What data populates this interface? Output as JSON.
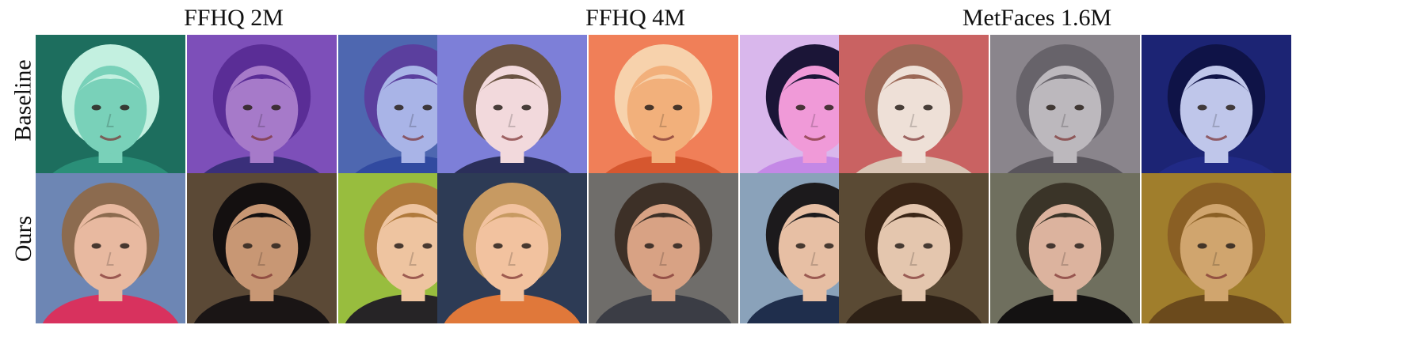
{
  "columns": [
    "FFHQ 2M",
    "FFHQ 4M",
    "MetFaces 1.6M"
  ],
  "rows": [
    "Baseline",
    "Ours"
  ],
  "tiles": {
    "baseline": [
      [
        {
          "bg": "#1d6e5e",
          "skin": "#79d1b9",
          "hair": "#c3f0e0",
          "shirt": "#2a8f78"
        },
        {
          "bg": "#7d4fb9",
          "skin": "#a67ac9",
          "hair": "#5a2d96",
          "shirt": "#3a2f7a"
        },
        {
          "bg": "#4e67b0",
          "skin": "#a9b4e7",
          "hair": "#5b3f9e",
          "shirt": "#314aa0"
        }
      ],
      [
        {
          "bg": "#7d7fd8",
          "skin": "#f2d9dc",
          "hair": "#6a5342",
          "shirt": "#2b2f5a"
        },
        {
          "bg": "#f07f58",
          "skin": "#f2b07b",
          "hair": "#f7d2ac",
          "shirt": "#d6572f"
        },
        {
          "bg": "#d9b7ec",
          "skin": "#f09ad8",
          "hair": "#1b1537",
          "shirt": "#c488e6"
        }
      ],
      [
        {
          "bg": "#c96262",
          "skin": "#eee0d7",
          "hair": "#9b6856",
          "shirt": "#d9c5b5"
        },
        {
          "bg": "#8a858c",
          "skin": "#bcb8bd",
          "hair": "#67636a",
          "shirt": "#59555c"
        },
        {
          "bg": "#1c2474",
          "skin": "#bfc6ea",
          "hair": "#0f1347",
          "shirt": "#212a86"
        }
      ]
    ],
    "ours": [
      [
        {
          "bg": "#6d86b4",
          "skin": "#e8b9a0",
          "hair": "#8c6b4f",
          "shirt": "#d8325e"
        },
        {
          "bg": "#5b4936",
          "skin": "#c89774",
          "hair": "#141010",
          "shirt": "#1a1515"
        },
        {
          "bg": "#98bd3e",
          "skin": "#eec4a0",
          "hair": "#b07a3c",
          "shirt": "#262426"
        }
      ],
      [
        {
          "bg": "#2d3b55",
          "skin": "#f2c29f",
          "hair": "#c79a62",
          "shirt": "#e0783a"
        },
        {
          "bg": "#6f6d6a",
          "skin": "#d8a284",
          "hair": "#3d3027",
          "shirt": "#3b3d45"
        },
        {
          "bg": "#8aa2ba",
          "skin": "#e7bfa4",
          "hair": "#1c1a1c",
          "shirt": "#1f2e4c"
        }
      ],
      [
        {
          "bg": "#5a4a34",
          "skin": "#e4c6ae",
          "hair": "#3a2516",
          "shirt": "#2e2116"
        },
        {
          "bg": "#6f6f5e",
          "skin": "#dcb39e",
          "hair": "#3a3428",
          "shirt": "#141212"
        },
        {
          "bg": "#a07e2c",
          "skin": "#d0a56e",
          "hair": "#8a5f24",
          "shirt": "#6b4a1c"
        }
      ]
    ]
  }
}
